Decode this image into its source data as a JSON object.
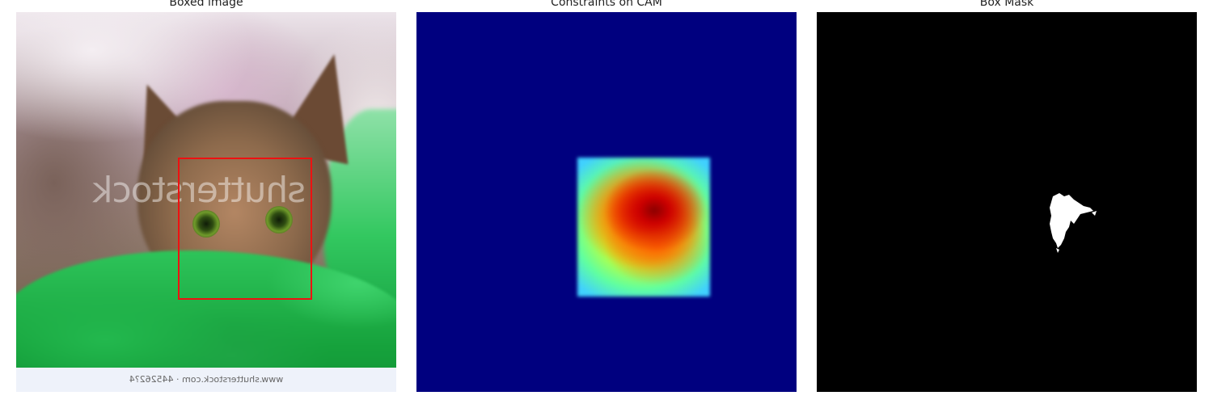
{
  "panels": {
    "boxed_image": {
      "title": "Boxed image",
      "watermark": "shutterstock",
      "footer": "www.shutterstock.com · 445262?4"
    },
    "cam": {
      "title": "Constraints on CAM"
    },
    "mask": {
      "title": "Box Mask"
    }
  },
  "colors": {
    "box": "#ee1111",
    "cam_background": "#00007f",
    "mask_background": "#000000",
    "mask_foreground": "#ffffff"
  }
}
